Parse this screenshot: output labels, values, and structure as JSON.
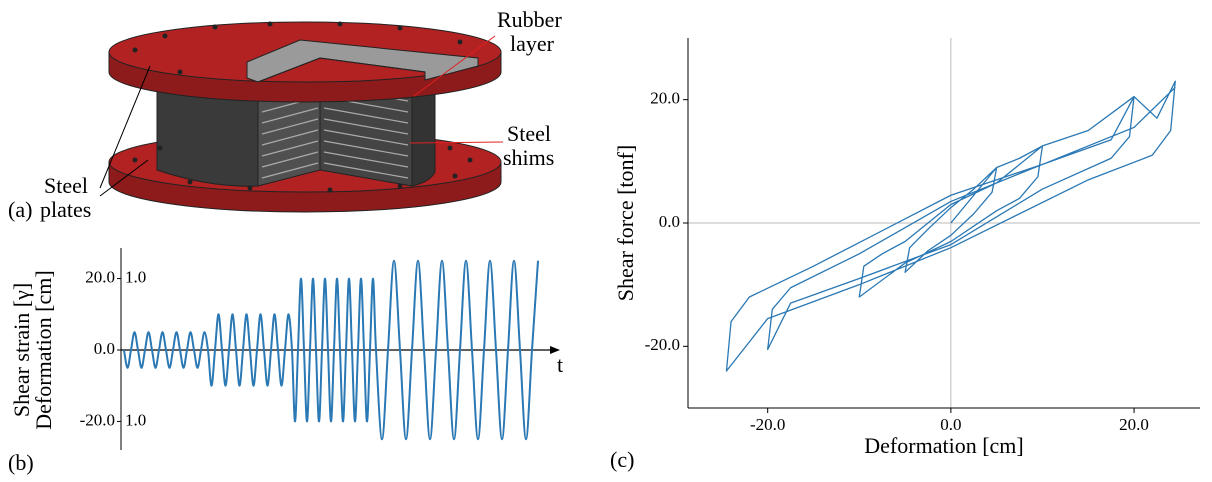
{
  "figure_a": {
    "label": "(a)",
    "annotations": [
      {
        "lines": [
          "Steel",
          "plates"
        ]
      },
      {
        "lines": [
          "Rubber",
          "layer"
        ]
      },
      {
        "lines": [
          "Steel",
          "shims"
        ]
      }
    ]
  },
  "chart_data": [
    {
      "type": "line",
      "label": "(b)",
      "xlabel": "t",
      "ylabel": "Deformation [cm]",
      "y2label": "Shear strain [γ]",
      "y2_color": "#e02020",
      "xlim": [
        0,
        420
      ],
      "ylim": [
        -28,
        28
      ],
      "yticks": [
        {
          "value": -20,
          "label": "-20.0"
        },
        {
          "value": 0,
          "label": "0.0"
        },
        {
          "value": 20,
          "label": "20.0"
        }
      ],
      "y2lim": [
        -1.4,
        1.4
      ],
      "y2ticks": [
        {
          "value": -1,
          "label": "1.0"
        },
        {
          "value": 1,
          "label": "1.0"
        }
      ],
      "series": [
        {
          "color": "#2a78b4",
          "x": [
            0,
            3.5,
            7,
            10.5,
            14,
            17.5,
            21,
            24.5,
            28,
            31.5,
            35,
            38.5,
            42,
            45.5,
            49,
            52.5,
            56,
            59.5,
            63,
            66.5,
            70,
            73.5,
            77,
            80.5,
            84,
            87.5,
            91,
            94.5,
            98,
            101.5,
            105,
            108.5,
            112,
            115.5,
            119,
            122.5,
            126,
            129.5,
            133,
            136.5,
            140,
            143.5,
            147,
            150.5,
            154,
            157.5,
            161,
            164.5,
            168,
            171,
            174,
            177,
            180,
            183,
            186,
            189,
            192,
            195,
            198,
            201,
            204,
            207,
            210,
            213,
            216,
            219,
            222,
            225,
            228,
            231,
            234,
            237,
            240,
            243,
            246,
            249,
            252,
            258,
            264,
            270,
            276,
            282,
            288,
            294,
            300,
            306,
            312,
            318,
            324,
            330,
            336,
            342,
            348,
            354,
            360,
            366,
            372,
            378,
            384,
            390,
            396,
            402,
            408,
            414
          ],
          "values": [
            0,
            -5,
            0,
            5,
            0,
            -5,
            0,
            5,
            0,
            -5,
            0,
            5,
            0,
            -5,
            0,
            5,
            0,
            -5,
            0,
            5,
            0,
            -5,
            0,
            5,
            0,
            -10,
            0,
            10,
            0,
            -10,
            0,
            10,
            0,
            -10,
            0,
            10,
            0,
            -10,
            0,
            10,
            0,
            -10,
            0,
            10,
            0,
            -10,
            0,
            10,
            0,
            -20,
            0,
            20,
            0,
            -20,
            0,
            20,
            0,
            -20,
            0,
            20,
            0,
            -20,
            0,
            20,
            0,
            -20,
            0,
            20,
            0,
            -20,
            0,
            20,
            0,
            -20,
            0,
            20,
            0,
            -25,
            0,
            25,
            0,
            -25,
            0,
            25,
            0,
            -25,
            0,
            25,
            0,
            -25,
            0,
            25,
            0,
            -25,
            0,
            25,
            0,
            -25,
            0,
            25,
            0,
            -25,
            0,
            25
          ]
        }
      ]
    },
    {
      "type": "line",
      "label": "(c)",
      "xlabel": "Deformation [cm]",
      "ylabel": "Shear force [tonf]",
      "xlim": [
        -28.7,
        27.2
      ],
      "ylim": [
        -30,
        30
      ],
      "zero_lines": true,
      "xticks": [
        {
          "value": -20,
          "label": "-20.0"
        },
        {
          "value": 0,
          "label": "0.0"
        },
        {
          "value": 20,
          "label": "20.0"
        }
      ],
      "yticks": [
        {
          "value": -20,
          "label": "-20.0"
        },
        {
          "value": 0,
          "label": "0.0"
        },
        {
          "value": 20,
          "label": "20.0"
        }
      ],
      "series": [
        {
          "color": "#2a78b4",
          "x": [
            0,
            2.5,
            5,
            4.5,
            2.5,
            0,
            -2.5,
            -5,
            -4.5,
            -2.5,
            0,
            2.5,
            5,
            7.5,
            10,
            9.5,
            7.5,
            5,
            0,
            -5,
            -10,
            -9.5,
            -7.5,
            -5,
            0,
            5,
            10,
            15,
            20,
            19.5,
            17.5,
            10,
            0,
            -10,
            -17.5,
            -20,
            -19.5,
            -17.5,
            -10,
            0,
            10,
            17.5,
            20,
            22.5,
            24.5,
            24,
            22,
            15,
            0,
            -10,
            -20,
            -24.5,
            -24,
            -22,
            -15,
            0,
            10,
            20,
            24.5
          ],
          "values": [
            0,
            4.5,
            9,
            5,
            1.5,
            -2,
            -4.5,
            -8,
            -4,
            -1,
            2.5,
            5.5,
            9,
            10.5,
            12.5,
            7.5,
            4,
            2,
            -3,
            -6.5,
            -12,
            -7,
            -5,
            -3,
            3,
            6.5,
            12.5,
            15,
            20.5,
            14,
            10.5,
            5.5,
            -3.5,
            -9,
            -13,
            -20.5,
            -14,
            -10.5,
            -5,
            3.5,
            9.5,
            13.5,
            20.5,
            17,
            23,
            15,
            11,
            7,
            -4,
            -10,
            -15.5,
            -24,
            -16,
            -12,
            -7,
            4.5,
            9.5,
            15.5,
            22
          ]
        }
      ]
    }
  ]
}
